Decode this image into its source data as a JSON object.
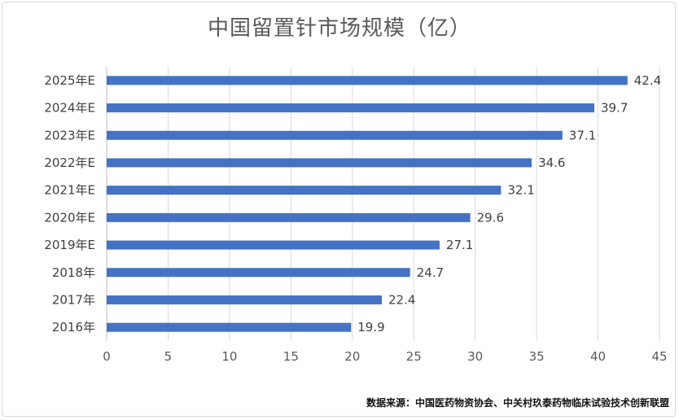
{
  "chart_data": {
    "type": "bar",
    "orientation": "horizontal",
    "title": "中国留置针市场规模（亿）",
    "categories": [
      "2016年",
      "2017年",
      "2018年",
      "2019年E",
      "2020年E",
      "2021年E",
      "2022年E",
      "2023年E",
      "2024年E",
      "2025年E"
    ],
    "values": [
      19.9,
      22.4,
      24.7,
      27.1,
      29.6,
      32.1,
      34.6,
      37.1,
      39.7,
      42.4
    ],
    "value_labels": [
      "19.9",
      "22.4",
      "24.7",
      "27.1",
      "29.6",
      "32.1",
      "34.6",
      "37.1",
      "39.7",
      "42.4"
    ],
    "xlim": [
      0,
      45
    ],
    "xticks": [
      0,
      5,
      10,
      15,
      20,
      25,
      30,
      35,
      40,
      45
    ],
    "grid": "vertical",
    "legend": "none",
    "bar_color": "#4472c4"
  },
  "source": "数据来源：中国医药物资协会、中关村玖泰药物临床试验技术创新联盟"
}
